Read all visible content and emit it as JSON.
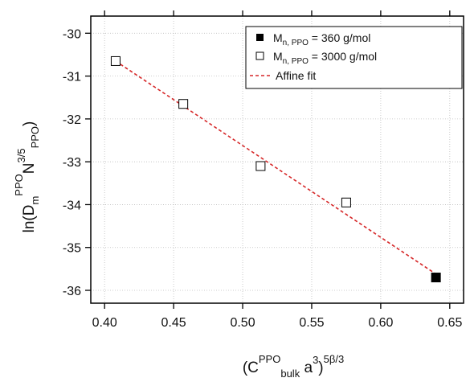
{
  "chart_data": {
    "type": "scatter",
    "xlim": [
      0.39,
      0.66
    ],
    "ylim": [
      -36.3,
      -29.6
    ],
    "x_ticks": [
      0.4,
      0.45,
      0.5,
      0.55,
      0.6,
      0.65
    ],
    "y_ticks": [
      -36,
      -35,
      -34,
      -33,
      -32,
      -31,
      -30
    ],
    "x_tick_labels": [
      "0.40",
      "0.45",
      "0.50",
      "0.55",
      "0.60",
      "0.65"
    ],
    "y_tick_labels": [
      "-36",
      "-35",
      "-34",
      "-33",
      "-32",
      "-31",
      "-30"
    ],
    "grid": true,
    "legend_position": "top-right",
    "xlabel": {
      "open": "(C",
      "sup1": "PPO",
      "sub1": "bulk",
      "mid": " a",
      "sup2": "3",
      "close": ")",
      "sup3": "5β/3"
    },
    "ylabel": {
      "open": "ln(D",
      "sub1": "m",
      "sup1": "PPO",
      "mid": "N",
      "sup2": "3/5",
      "sub2": "PPO",
      "close": ")"
    },
    "series": [
      {
        "name": "360 g/mol",
        "legend_prefix": "M",
        "legend_sub": "n, PPO",
        "legend_suffix": " = 360 g/mol",
        "marker": "filled-square",
        "color": "#000000",
        "points": [
          {
            "x": 0.64,
            "y": -35.7
          }
        ]
      },
      {
        "name": "3000 g/mol",
        "legend_prefix": "M",
        "legend_sub": "n, PPO",
        "legend_suffix": " = 3000 g/mol",
        "marker": "open-square",
        "color": "#000000",
        "points": [
          {
            "x": 0.408,
            "y": -30.65
          },
          {
            "x": 0.457,
            "y": -31.65
          },
          {
            "x": 0.513,
            "y": -33.1
          },
          {
            "x": 0.575,
            "y": -33.95
          }
        ]
      }
    ],
    "fit": {
      "name": "Affine fit",
      "color": "#d62728",
      "style": "dashed",
      "x": [
        0.408,
        0.64
      ],
      "y": [
        -30.65,
        -35.62
      ]
    }
  }
}
